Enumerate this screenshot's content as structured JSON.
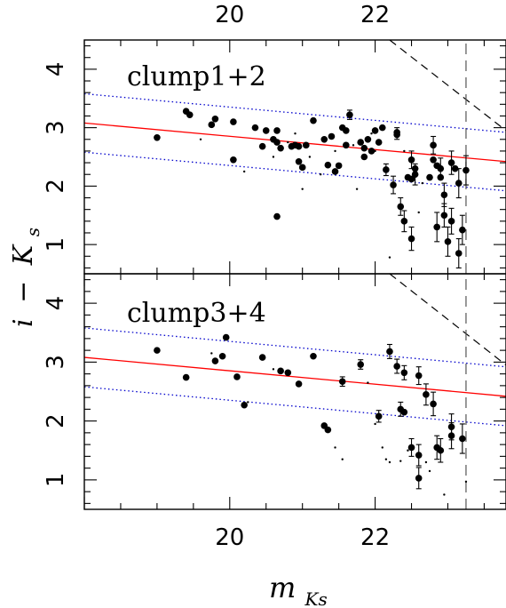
{
  "chart_data": [
    {
      "type": "scatter",
      "panel_label": "clump1+2",
      "xlim": [
        18.0,
        23.8
      ],
      "ylim": [
        0.5,
        4.5
      ],
      "x_ticks": [
        20,
        22
      ],
      "y_ticks": [
        1,
        2,
        3,
        4
      ],
      "grid": false,
      "reference_lines": [
        {
          "style": "solid",
          "color": "#ff0000",
          "points": [
            [
              18.0,
              3.08
            ],
            [
              23.8,
              2.42
            ]
          ]
        },
        {
          "style": "dotted",
          "color": "#0000cc",
          "points": [
            [
              18.0,
              3.58
            ],
            [
              23.8,
              2.92
            ]
          ]
        },
        {
          "style": "dotted",
          "color": "#0000cc",
          "points": [
            [
              18.0,
              2.58
            ],
            [
              23.8,
              1.92
            ]
          ]
        },
        {
          "style": "dashed",
          "color": "#000000",
          "points": [
            [
              22.2,
              4.5
            ],
            [
              23.8,
              2.95
            ]
          ]
        },
        {
          "style": "dashed-vertical",
          "color": "#000000",
          "points": [
            [
              23.25,
              0.5
            ],
            [
              23.25,
              4.5
            ]
          ]
        }
      ],
      "points": [
        {
          "x": 19.0,
          "y": 2.83
        },
        {
          "x": 19.4,
          "y": 3.28
        },
        {
          "x": 19.45,
          "y": 3.22
        },
        {
          "x": 19.75,
          "y": 3.05
        },
        {
          "x": 19.8,
          "y": 3.15
        },
        {
          "x": 20.05,
          "y": 3.1
        },
        {
          "x": 20.05,
          "y": 2.45
        },
        {
          "x": 20.35,
          "y": 3.0
        },
        {
          "x": 20.5,
          "y": 2.95
        },
        {
          "x": 20.45,
          "y": 2.68
        },
        {
          "x": 20.6,
          "y": 2.8
        },
        {
          "x": 20.65,
          "y": 2.95
        },
        {
          "x": 20.65,
          "y": 2.75
        },
        {
          "x": 20.7,
          "y": 2.65
        },
        {
          "x": 20.65,
          "y": 1.48
        },
        {
          "x": 20.85,
          "y": 2.68
        },
        {
          "x": 20.9,
          "y": 2.7
        },
        {
          "x": 20.95,
          "y": 2.42
        },
        {
          "x": 20.95,
          "y": 2.68
        },
        {
          "x": 21.0,
          "y": 2.32
        },
        {
          "x": 21.05,
          "y": 2.7
        },
        {
          "x": 21.15,
          "y": 3.12
        },
        {
          "x": 21.3,
          "y": 2.8
        },
        {
          "x": 21.35,
          "y": 2.36
        },
        {
          "x": 21.4,
          "y": 2.85
        },
        {
          "x": 21.45,
          "y": 2.25
        },
        {
          "x": 21.5,
          "y": 2.35
        },
        {
          "x": 21.55,
          "y": 3.0
        },
        {
          "x": 21.6,
          "y": 2.95
        },
        {
          "x": 21.65,
          "y": 3.22
        },
        {
          "x": 21.6,
          "y": 2.7
        },
        {
          "x": 21.8,
          "y": 2.75
        },
        {
          "x": 21.85,
          "y": 2.5
        },
        {
          "x": 21.9,
          "y": 2.8
        },
        {
          "x": 21.95,
          "y": 2.6
        },
        {
          "x": 21.85,
          "y": 2.65
        },
        {
          "x": 22.0,
          "y": 2.95
        },
        {
          "x": 22.05,
          "y": 2.75
        },
        {
          "x": 22.1,
          "y": 3.0
        },
        {
          "x": 22.15,
          "y": 2.28
        },
        {
          "x": 22.3,
          "y": 2.92
        },
        {
          "x": 22.3,
          "y": 2.88
        },
        {
          "x": 22.35,
          "y": 1.65
        },
        {
          "x": 22.4,
          "y": 1.4
        },
        {
          "x": 22.25,
          "y": 2.02
        },
        {
          "x": 22.45,
          "y": 2.15
        },
        {
          "x": 22.5,
          "y": 2.45
        },
        {
          "x": 22.5,
          "y": 2.12
        },
        {
          "x": 22.55,
          "y": 2.3
        },
        {
          "x": 22.55,
          "y": 2.2
        },
        {
          "x": 22.5,
          "y": 1.1
        },
        {
          "x": 22.75,
          "y": 2.15
        },
        {
          "x": 22.8,
          "y": 2.7
        },
        {
          "x": 22.8,
          "y": 2.45
        },
        {
          "x": 22.85,
          "y": 2.35
        },
        {
          "x": 22.9,
          "y": 2.3
        },
        {
          "x": 22.9,
          "y": 2.15
        },
        {
          "x": 22.95,
          "y": 1.85
        },
        {
          "x": 22.95,
          "y": 1.5
        },
        {
          "x": 22.85,
          "y": 1.3
        },
        {
          "x": 23.0,
          "y": 1.05
        },
        {
          "x": 23.05,
          "y": 2.4
        },
        {
          "x": 23.05,
          "y": 1.4
        },
        {
          "x": 23.1,
          "y": 2.3
        },
        {
          "x": 23.15,
          "y": 2.05
        },
        {
          "x": 23.15,
          "y": 0.85
        },
        {
          "x": 23.2,
          "y": 1.25
        },
        {
          "x": 23.25,
          "y": 2.27
        }
      ],
      "error_bars": [
        {
          "x": 21.65,
          "y": 3.22,
          "e": 0.08
        },
        {
          "x": 22.3,
          "y": 2.9,
          "e": 0.1
        },
        {
          "x": 22.15,
          "y": 2.28,
          "e": 0.1
        },
        {
          "x": 22.25,
          "y": 2.02,
          "e": 0.15
        },
        {
          "x": 22.35,
          "y": 1.65,
          "e": 0.15
        },
        {
          "x": 22.4,
          "y": 1.4,
          "e": 0.18
        },
        {
          "x": 22.5,
          "y": 2.45,
          "e": 0.15
        },
        {
          "x": 22.55,
          "y": 2.2,
          "e": 0.18
        },
        {
          "x": 22.5,
          "y": 1.1,
          "e": 0.2
        },
        {
          "x": 22.8,
          "y": 2.7,
          "e": 0.15
        },
        {
          "x": 22.9,
          "y": 2.3,
          "e": 0.18
        },
        {
          "x": 22.95,
          "y": 1.85,
          "e": 0.2
        },
        {
          "x": 22.95,
          "y": 1.5,
          "e": 0.2
        },
        {
          "x": 22.85,
          "y": 1.3,
          "e": 0.25
        },
        {
          "x": 23.0,
          "y": 1.05,
          "e": 0.25
        },
        {
          "x": 23.05,
          "y": 2.4,
          "e": 0.2
        },
        {
          "x": 23.05,
          "y": 1.4,
          "e": 0.22
        },
        {
          "x": 23.15,
          "y": 2.05,
          "e": 0.25
        },
        {
          "x": 23.15,
          "y": 0.85,
          "e": 0.25
        },
        {
          "x": 23.2,
          "y": 1.25,
          "e": 0.25
        },
        {
          "x": 23.25,
          "y": 2.27,
          "e": 0.25
        }
      ],
      "small_points": [
        {
          "x": 19.6,
          "y": 2.8
        },
        {
          "x": 20.2,
          "y": 2.25
        },
        {
          "x": 20.6,
          "y": 2.5
        },
        {
          "x": 20.9,
          "y": 2.9
        },
        {
          "x": 21.0,
          "y": 1.95
        },
        {
          "x": 21.1,
          "y": 2.5
        },
        {
          "x": 21.25,
          "y": 2.2
        },
        {
          "x": 21.45,
          "y": 2.6
        },
        {
          "x": 21.75,
          "y": 1.95
        },
        {
          "x": 21.95,
          "y": 2.9
        },
        {
          "x": 22.2,
          "y": 0.78
        },
        {
          "x": 22.4,
          "y": 2.6
        },
        {
          "x": 22.65,
          "y": 2.05
        },
        {
          "x": 22.6,
          "y": 1.55
        },
        {
          "x": 21.15,
          "y": 3.1
        },
        {
          "x": 20.8,
          "y": 2.75
        },
        {
          "x": 21.7,
          "y": 2.7
        },
        {
          "x": 22.0,
          "y": 2.6
        }
      ]
    },
    {
      "type": "scatter",
      "panel_label": "clump3+4",
      "xlim": [
        18.0,
        23.8
      ],
      "ylim": [
        0.5,
        4.5
      ],
      "x_ticks": [
        20,
        22
      ],
      "y_ticks": [
        1,
        2,
        3,
        4
      ],
      "grid": false,
      "reference_lines": [
        {
          "style": "solid",
          "color": "#ff0000",
          "points": [
            [
              18.0,
              3.08
            ],
            [
              23.8,
              2.42
            ]
          ]
        },
        {
          "style": "dotted",
          "color": "#0000cc",
          "points": [
            [
              18.0,
              3.58
            ],
            [
              23.8,
              2.92
            ]
          ]
        },
        {
          "style": "dotted",
          "color": "#0000cc",
          "points": [
            [
              18.0,
              2.58
            ],
            [
              23.8,
              1.92
            ]
          ]
        },
        {
          "style": "dashed",
          "color": "#000000",
          "points": [
            [
              22.2,
              4.5
            ],
            [
              23.8,
              2.95
            ]
          ]
        },
        {
          "style": "dashed-vertical",
          "color": "#000000",
          "points": [
            [
              23.25,
              0.5
            ],
            [
              23.25,
              4.5
            ]
          ]
        }
      ],
      "points": [
        {
          "x": 19.0,
          "y": 3.2
        },
        {
          "x": 19.4,
          "y": 2.74
        },
        {
          "x": 19.8,
          "y": 3.02
        },
        {
          "x": 19.9,
          "y": 3.1
        },
        {
          "x": 19.95,
          "y": 3.42
        },
        {
          "x": 20.1,
          "y": 2.75
        },
        {
          "x": 20.2,
          "y": 2.27
        },
        {
          "x": 20.45,
          "y": 3.08
        },
        {
          "x": 20.7,
          "y": 2.85
        },
        {
          "x": 20.8,
          "y": 2.82
        },
        {
          "x": 20.95,
          "y": 2.63
        },
        {
          "x": 21.15,
          "y": 3.1
        },
        {
          "x": 21.3,
          "y": 1.92
        },
        {
          "x": 21.35,
          "y": 1.85
        },
        {
          "x": 21.55,
          "y": 2.67
        },
        {
          "x": 21.8,
          "y": 2.96
        },
        {
          "x": 22.05,
          "y": 2.08
        },
        {
          "x": 22.2,
          "y": 3.18
        },
        {
          "x": 22.3,
          "y": 2.93
        },
        {
          "x": 22.35,
          "y": 2.2
        },
        {
          "x": 22.4,
          "y": 2.15
        },
        {
          "x": 22.4,
          "y": 2.82
        },
        {
          "x": 22.5,
          "y": 1.55
        },
        {
          "x": 22.6,
          "y": 1.42
        },
        {
          "x": 22.6,
          "y": 1.03
        },
        {
          "x": 22.6,
          "y": 2.77
        },
        {
          "x": 22.7,
          "y": 2.45
        },
        {
          "x": 22.8,
          "y": 2.29
        },
        {
          "x": 22.85,
          "y": 1.55
        },
        {
          "x": 22.9,
          "y": 1.5
        },
        {
          "x": 23.05,
          "y": 1.9
        },
        {
          "x": 23.05,
          "y": 1.75
        },
        {
          "x": 23.2,
          "y": 1.7
        }
      ],
      "error_bars": [
        {
          "x": 21.55,
          "y": 2.67,
          "e": 0.08
        },
        {
          "x": 21.8,
          "y": 2.96,
          "e": 0.08
        },
        {
          "x": 22.05,
          "y": 2.08,
          "e": 0.1
        },
        {
          "x": 22.2,
          "y": 3.18,
          "e": 0.12
        },
        {
          "x": 22.3,
          "y": 2.93,
          "e": 0.12
        },
        {
          "x": 22.35,
          "y": 2.2,
          "e": 0.12
        },
        {
          "x": 22.4,
          "y": 2.82,
          "e": 0.12
        },
        {
          "x": 22.5,
          "y": 1.55,
          "e": 0.15
        },
        {
          "x": 22.6,
          "y": 1.42,
          "e": 0.18
        },
        {
          "x": 22.6,
          "y": 1.03,
          "e": 0.18
        },
        {
          "x": 22.6,
          "y": 2.77,
          "e": 0.15
        },
        {
          "x": 22.7,
          "y": 2.45,
          "e": 0.18
        },
        {
          "x": 22.8,
          "y": 2.29,
          "e": 0.2
        },
        {
          "x": 22.85,
          "y": 1.55,
          "e": 0.2
        },
        {
          "x": 22.9,
          "y": 1.5,
          "e": 0.2
        },
        {
          "x": 23.05,
          "y": 1.9,
          "e": 0.22
        },
        {
          "x": 23.05,
          "y": 1.75,
          "e": 0.22
        },
        {
          "x": 23.2,
          "y": 1.7,
          "e": 0.25
        }
      ],
      "small_points": [
        {
          "x": 19.75,
          "y": 3.15
        },
        {
          "x": 20.25,
          "y": 2.32
        },
        {
          "x": 20.6,
          "y": 2.88
        },
        {
          "x": 21.45,
          "y": 1.55
        },
        {
          "x": 21.55,
          "y": 1.35
        },
        {
          "x": 21.9,
          "y": 2.65
        },
        {
          "x": 22.0,
          "y": 1.95
        },
        {
          "x": 22.15,
          "y": 1.35
        },
        {
          "x": 22.2,
          "y": 1.3
        },
        {
          "x": 22.35,
          "y": 1.32
        },
        {
          "x": 22.45,
          "y": 1.5
        },
        {
          "x": 22.75,
          "y": 1.15
        },
        {
          "x": 22.7,
          "y": 1.3
        },
        {
          "x": 22.95,
          "y": 0.75
        },
        {
          "x": 23.25,
          "y": 0.97
        },
        {
          "x": 22.1,
          "y": 1.55
        }
      ]
    }
  ],
  "axis_labels": {
    "y_main": "i",
    "y_minus": "−",
    "y_K": "K",
    "y_sub": "s",
    "x_main": "m",
    "x_sub": "Ks"
  }
}
